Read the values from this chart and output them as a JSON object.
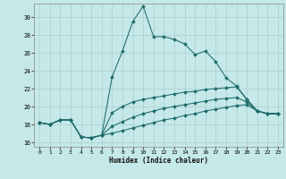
{
  "xlabel": "Humidex (Indice chaleur)",
  "bg_color": "#c5e8e8",
  "grid_color": "#aacfcf",
  "line_color": "#1e6b6b",
  "xlim": [
    -0.5,
    23.5
  ],
  "ylim": [
    15.5,
    31.5
  ],
  "yticks": [
    16,
    18,
    20,
    22,
    24,
    26,
    28,
    30
  ],
  "xticks": [
    0,
    1,
    2,
    3,
    4,
    5,
    6,
    7,
    8,
    9,
    10,
    11,
    12,
    13,
    14,
    15,
    16,
    17,
    18,
    19,
    20,
    21,
    22,
    23
  ],
  "x": [
    0,
    1,
    2,
    3,
    4,
    5,
    6,
    7,
    8,
    9,
    10,
    11,
    12,
    13,
    14,
    15,
    16,
    17,
    18,
    19,
    20,
    21,
    22,
    23
  ],
  "curve1": [
    18.2,
    18.0,
    18.5,
    18.5,
    16.6,
    16.5,
    16.8,
    23.3,
    26.2,
    29.5,
    31.2,
    27.8,
    27.8,
    27.5,
    27.0,
    25.8,
    26.2,
    25.0,
    23.2,
    22.3,
    20.8,
    19.5,
    19.2,
    19.2
  ],
  "curve2": [
    18.2,
    18.0,
    18.5,
    18.5,
    16.6,
    16.5,
    16.8,
    19.3,
    20.0,
    20.5,
    20.8,
    21.0,
    21.2,
    21.4,
    21.6,
    21.7,
    21.9,
    22.0,
    22.1,
    22.2,
    20.8,
    19.5,
    19.2,
    19.2
  ],
  "curve3": [
    18.2,
    18.0,
    18.5,
    18.5,
    16.6,
    16.5,
    16.8,
    17.8,
    18.3,
    18.8,
    19.2,
    19.5,
    19.8,
    20.0,
    20.2,
    20.4,
    20.6,
    20.8,
    20.9,
    21.0,
    20.5,
    19.5,
    19.2,
    19.2
  ],
  "curve4": [
    18.2,
    18.0,
    18.5,
    18.5,
    16.6,
    16.5,
    16.8,
    17.0,
    17.3,
    17.6,
    17.9,
    18.2,
    18.5,
    18.7,
    19.0,
    19.2,
    19.5,
    19.7,
    19.9,
    20.1,
    20.2,
    19.5,
    19.2,
    19.2
  ]
}
